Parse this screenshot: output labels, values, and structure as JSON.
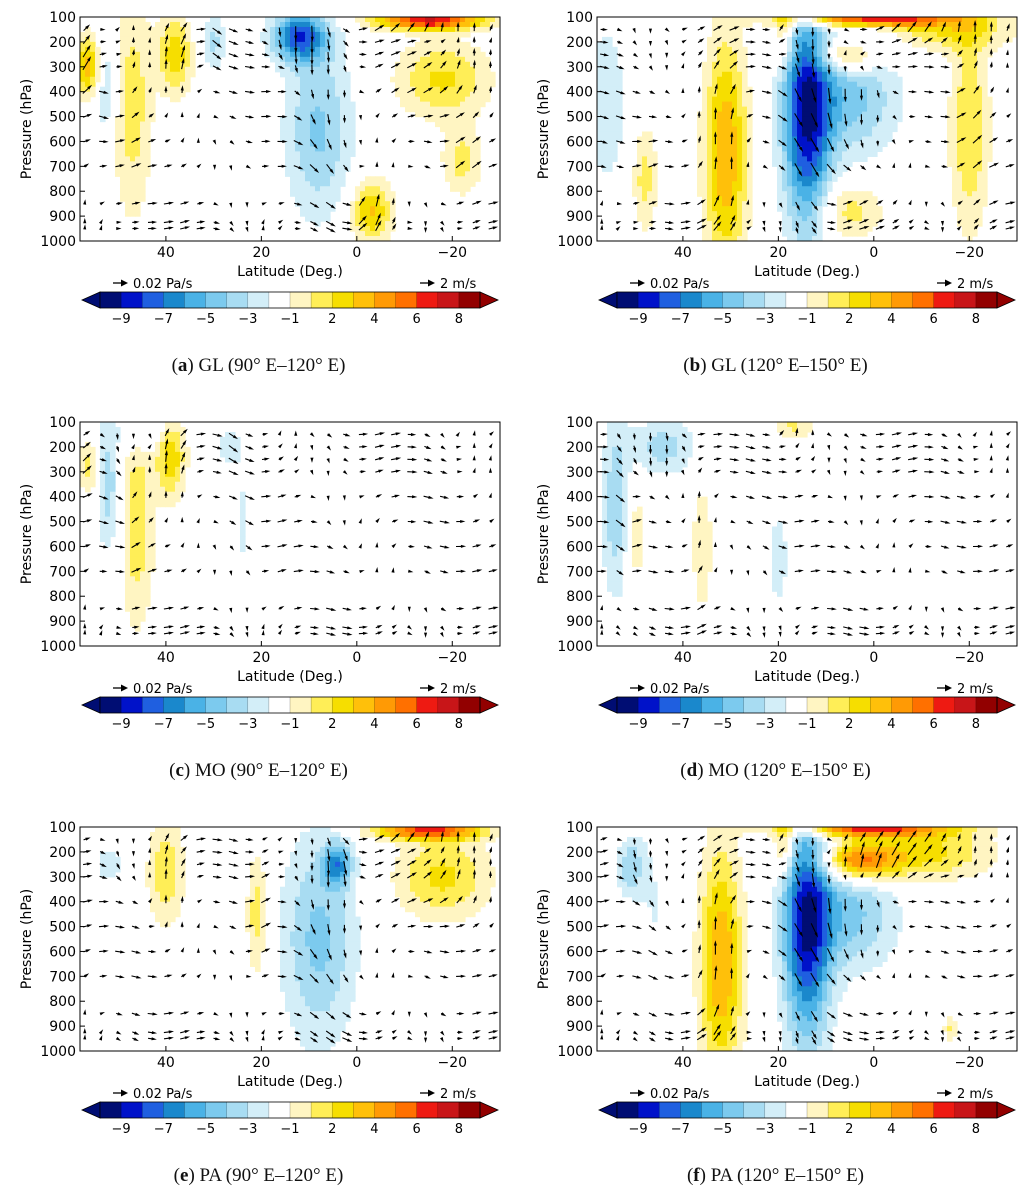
{
  "figure": {
    "legend": {
      "vertical_ref": "0.02 Pa/s",
      "horizontal_ref": "2 m/s",
      "colorbar_ticks": [
        "-9",
        "-7",
        "-5",
        "-3",
        "-1",
        "2",
        "4",
        "6",
        "8"
      ],
      "colorbar_colors": [
        "#000d73",
        "#0012c9",
        "#1f5fe0",
        "#1a88cc",
        "#4ab2e6",
        "#7ccaee",
        "#a8dcf2",
        "#d3eef8",
        "#ffffff",
        "#fff5c2",
        "#ffee57",
        "#f6de00",
        "#ffc00a",
        "#ff9a05",
        "#ff7000",
        "#ee1a12",
        "#c81518",
        "#920000"
      ]
    },
    "panels": [
      {
        "id": "a",
        "letter": "a",
        "label": " GL (90° E–120° E)"
      },
      {
        "id": "b",
        "letter": "b",
        "label": " GL (120° E–150° E)"
      },
      {
        "id": "c",
        "letter": "c",
        "label": " MO (90° E–120° E)"
      },
      {
        "id": "d",
        "letter": "d",
        "label": " MO (120° E–150° E)"
      },
      {
        "id": "e",
        "letter": "e",
        "label": " PA (90° E–120° E)"
      },
      {
        "id": "f",
        "letter": "f",
        "label": " PA (120° E–150° E)"
      }
    ]
  },
  "chart_data": [
    {
      "type": "heatmap",
      "panel": "a",
      "title": "GL (90° E–120° E)",
      "xlabel": "Latitude (Deg.)",
      "ylabel": "Pressure (hPa)",
      "xlim": [
        58,
        -30
      ],
      "ylim": [
        1000,
        100
      ],
      "xticks": [
        40,
        20,
        0,
        -20
      ],
      "xtick_labels": [
        "40",
        "20",
        "0",
        "−20"
      ],
      "yticks": [
        100,
        200,
        300,
        400,
        500,
        600,
        700,
        800,
        900,
        1000
      ],
      "ytick_labels": [
        "100",
        "200",
        "300",
        "400",
        "500",
        "600",
        "700",
        "800",
        "900",
        "1000"
      ],
      "blobs": [
        {
          "lat": 47,
          "p": 450,
          "wl": 3,
          "wp": 330,
          "v": 2.6
        },
        {
          "lat": 38,
          "p": 250,
          "wl": 2.5,
          "wp": 110,
          "v": 3.8
        },
        {
          "lat": 56,
          "p": 300,
          "wl": 2,
          "wp": 90,
          "v": 5
        },
        {
          "lat": 53,
          "p": 350,
          "wl": 1.8,
          "wp": 150,
          "v": -2.8
        },
        {
          "lat": 30,
          "p": 200,
          "wl": 2,
          "wp": 80,
          "v": -2.2
        },
        {
          "lat": 8,
          "p": 550,
          "wl": 5,
          "wp": 250,
          "v": -3.2
        },
        {
          "lat": 12,
          "p": 180,
          "wl": 4,
          "wp": 70,
          "v": -6.5
        },
        {
          "lat": -3,
          "p": 880,
          "wl": 3,
          "wp": 90,
          "v": 4.2
        },
        {
          "lat": -18,
          "p": 350,
          "wl": 7,
          "wp": 110,
          "v": 3.2
        },
        {
          "lat": -22,
          "p": 680,
          "wl": 3,
          "wp": 100,
          "v": 2.4
        },
        {
          "lat": -15,
          "p": 115,
          "wl": 8,
          "wp": 25,
          "v": 8
        }
      ]
    },
    {
      "type": "heatmap",
      "panel": "b",
      "title": "GL (120° E–150° E)",
      "xlabel": "Latitude (Deg.)",
      "ylabel": "Pressure (hPa)",
      "xlim": [
        58,
        -30
      ],
      "ylim": [
        1000,
        100
      ],
      "xticks": [
        40,
        20,
        0,
        -20
      ],
      "xtick_labels": [
        "40",
        "20",
        "0",
        "−20"
      ],
      "yticks": [
        100,
        200,
        300,
        400,
        500,
        600,
        700,
        800,
        900,
        1000
      ],
      "ytick_labels": [
        "100",
        "200",
        "300",
        "400",
        "500",
        "600",
        "700",
        "800",
        "900",
        "1000"
      ],
      "blobs": [
        {
          "lat": 31,
          "p": 650,
          "wl": 3.2,
          "wp": 330,
          "v": 5
        },
        {
          "lat": 48,
          "p": 750,
          "wl": 1.8,
          "wp": 150,
          "v": 2.5
        },
        {
          "lat": 19,
          "p": 180,
          "wl": 1.5,
          "wp": 80,
          "v": 2.5
        },
        {
          "lat": 14,
          "p": 500,
          "wl": 3.5,
          "wp": 330,
          "v": -7.5
        },
        {
          "lat": 5,
          "p": 420,
          "wl": 7,
          "wp": 170,
          "v": -3.5
        },
        {
          "lat": 3,
          "p": 200,
          "wl": 5,
          "wp": 60,
          "v": -3
        },
        {
          "lat": 5,
          "p": 240,
          "wl": 5,
          "wp": 55,
          "v": 6
        },
        {
          "lat": -15,
          "p": 150,
          "wl": 10,
          "wp": 60,
          "v": 3
        },
        {
          "lat": -20,
          "p": 550,
          "wl": 3,
          "wp": 300,
          "v": 3
        },
        {
          "lat": 5,
          "p": 880,
          "wl": 5,
          "wp": 80,
          "v": 2.5
        },
        {
          "lat": 56,
          "p": 450,
          "wl": 3,
          "wp": 250,
          "v": -1.8
        },
        {
          "lat": 2,
          "p": 105,
          "wl": 12,
          "wp": 25,
          "v": 8
        }
      ]
    },
    {
      "type": "heatmap",
      "panel": "c",
      "title": "MO (90° E–120° E)",
      "xlabel": "Latitude (Deg.)",
      "ylabel": "Pressure (hPa)",
      "xlim": [
        58,
        -30
      ],
      "ylim": [
        1000,
        100
      ],
      "xticks": [
        40,
        20,
        0,
        -20
      ],
      "xtick_labels": [
        "40",
        "20",
        "0",
        "−20"
      ],
      "yticks": [
        100,
        200,
        300,
        400,
        500,
        600,
        700,
        800,
        900,
        1000
      ],
      "ytick_labels": [
        "100",
        "200",
        "300",
        "400",
        "500",
        "600",
        "700",
        "800",
        "900",
        "1000"
      ],
      "blobs": [
        {
          "lat": 46,
          "p": 500,
          "wl": 2.5,
          "wp": 300,
          "v": 2.8
        },
        {
          "lat": 39,
          "p": 230,
          "wl": 2.2,
          "wp": 120,
          "v": 4
        },
        {
          "lat": 56,
          "p": 280,
          "wl": 1.5,
          "wp": 80,
          "v": 2.5
        },
        {
          "lat": 52,
          "p": 350,
          "wl": 1.7,
          "wp": 200,
          "v": -2.6
        },
        {
          "lat": 44,
          "p": 130,
          "wl": 4,
          "wp": 60,
          "v": -2
        },
        {
          "lat": 27,
          "p": 200,
          "wl": 2,
          "wp": 60,
          "v": -1.5
        },
        {
          "lat": 24,
          "p": 500,
          "wl": 1.5,
          "wp": 200,
          "v": -1.2
        }
      ]
    },
    {
      "type": "heatmap",
      "panel": "d",
      "title": "MO (120° E–150° E)",
      "xlabel": "Latitude (Deg.)",
      "ylabel": "Pressure (hPa)",
      "xlim": [
        58,
        -30
      ],
      "ylim": [
        1000,
        100
      ],
      "xticks": [
        40,
        20,
        0,
        -20
      ],
      "xtick_labels": [
        "40",
        "20",
        "0",
        "−20"
      ],
      "yticks": [
        100,
        200,
        300,
        400,
        500,
        600,
        700,
        800,
        900,
        1000
      ],
      "ytick_labels": [
        "100",
        "200",
        "300",
        "400",
        "500",
        "600",
        "700",
        "800",
        "900",
        "1000"
      ],
      "blobs": [
        {
          "lat": 54,
          "p": 450,
          "wl": 2.2,
          "wp": 250,
          "v": -2.8
        },
        {
          "lat": 44,
          "p": 200,
          "wl": 5,
          "wp": 80,
          "v": -2.5
        },
        {
          "lat": 50,
          "p": 550,
          "wl": 1.5,
          "wp": 150,
          "v": 2
        },
        {
          "lat": 17,
          "p": 120,
          "wl": 3,
          "wp": 40,
          "v": 2.2
        },
        {
          "lat": 20,
          "p": 650,
          "wl": 2.5,
          "wp": 250,
          "v": -1.2
        },
        {
          "lat": 36,
          "p": 600,
          "wl": 2,
          "wp": 250,
          "v": 1.5
        }
      ]
    },
    {
      "type": "heatmap",
      "panel": "e",
      "title": "PA (90° E–120° E)",
      "xlabel": "Latitude (Deg.)",
      "ylabel": "Pressure (hPa)",
      "xlim": [
        58,
        -30
      ],
      "ylim": [
        1000,
        100
      ],
      "xticks": [
        40,
        20,
        0,
        -20
      ],
      "xtick_labels": [
        "40",
        "20",
        "0",
        "−20"
      ],
      "yticks": [
        100,
        200,
        300,
        400,
        500,
        600,
        700,
        800,
        900,
        1000
      ],
      "ytick_labels": [
        "100",
        "200",
        "300",
        "400",
        "500",
        "600",
        "700",
        "800",
        "900",
        "1000"
      ],
      "blobs": [
        {
          "lat": 40,
          "p": 280,
          "wl": 2.8,
          "wp": 150,
          "v": 2.8
        },
        {
          "lat": 21,
          "p": 450,
          "wl": 1.5,
          "wp": 180,
          "v": 2.6
        },
        {
          "lat": 8,
          "p": 550,
          "wl": 5.5,
          "wp": 300,
          "v": -3.3
        },
        {
          "lat": 4,
          "p": 250,
          "wl": 2,
          "wp": 60,
          "v": -4.5
        },
        {
          "lat": -18,
          "p": 300,
          "wl": 7,
          "wp": 120,
          "v": 3.3
        },
        {
          "lat": 52,
          "p": 250,
          "wl": 3,
          "wp": 80,
          "v": -1.3
        },
        {
          "lat": -15,
          "p": 115,
          "wl": 8,
          "wp": 25,
          "v": 7
        }
      ]
    },
    {
      "type": "heatmap",
      "panel": "f",
      "title": "PA (120° E–150° E)",
      "xlabel": "Latitude (Deg.)",
      "ylabel": "Pressure (hPa)",
      "xlim": [
        58,
        -30
      ],
      "ylim": [
        1000,
        100
      ],
      "xticks": [
        40,
        20,
        0,
        -20
      ],
      "xtick_labels": [
        "40",
        "20",
        "0",
        "−20"
      ],
      "yticks": [
        100,
        200,
        300,
        400,
        500,
        600,
        700,
        800,
        900,
        1000
      ],
      "ytick_labels": [
        "100",
        "200",
        "300",
        "400",
        "500",
        "600",
        "700",
        "800",
        "900",
        "1000"
      ],
      "blobs": [
        {
          "lat": 32,
          "p": 650,
          "wl": 3.2,
          "wp": 330,
          "v": 5
        },
        {
          "lat": 19,
          "p": 180,
          "wl": 1.5,
          "wp": 80,
          "v": 3
        },
        {
          "lat": 14,
          "p": 500,
          "wl": 3.5,
          "wp": 330,
          "v": -7.5
        },
        {
          "lat": 5,
          "p": 450,
          "wl": 7,
          "wp": 160,
          "v": -3.3
        },
        {
          "lat": 3,
          "p": 235,
          "wl": 6,
          "wp": 55,
          "v": 6.5
        },
        {
          "lat": -12,
          "p": 200,
          "wl": 9,
          "wp": 80,
          "v": 3.2
        },
        {
          "lat": 51,
          "p": 260,
          "wl": 2,
          "wp": 80,
          "v": -2.8
        },
        {
          "lat": 46,
          "p": 450,
          "wl": 3,
          "wp": 300,
          "v": -1
        },
        {
          "lat": -16,
          "p": 910,
          "wl": 1,
          "wp": 30,
          "v": 2.5
        },
        {
          "lat": 2,
          "p": 105,
          "wl": 12,
          "wp": 25,
          "v": 7
        }
      ]
    }
  ]
}
